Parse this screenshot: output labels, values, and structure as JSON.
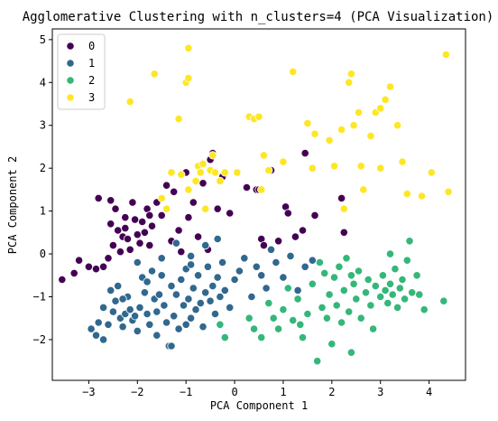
{
  "chart_data": {
    "type": "scatter",
    "title": "Agglomerative Clustering with n_clusters=4 (PCA Visualization)",
    "xlabel": "PCA Component 1",
    "ylabel": "PCA Component 2",
    "xlim": [
      -3.75,
      4.75
    ],
    "ylim": [
      -2.95,
      5.25
    ],
    "xticks": [
      -3,
      -2,
      -1,
      0,
      1,
      2,
      3,
      4
    ],
    "yticks": [
      -2,
      -1,
      0,
      1,
      2,
      3,
      4,
      5
    ],
    "grid": false,
    "legend_position": "top-left",
    "series": [
      {
        "name": "0",
        "color": "#440154",
        "points": [
          [
            -3.55,
            -0.6
          ],
          [
            -3.3,
            -0.45
          ],
          [
            -3.2,
            -0.15
          ],
          [
            -3.0,
            -0.3
          ],
          [
            -2.85,
            -0.35
          ],
          [
            -2.7,
            -0.3
          ],
          [
            -2.6,
            -0.1
          ],
          [
            -2.5,
            0.2
          ],
          [
            -2.55,
            0.7
          ],
          [
            -2.45,
            1.05
          ],
          [
            -2.4,
            0.55
          ],
          [
            -2.35,
            0.05
          ],
          [
            -2.3,
            0.4
          ],
          [
            -2.25,
            0.85
          ],
          [
            -2.2,
            0.35
          ],
          [
            -2.15,
            0.1
          ],
          [
            -2.1,
            1.2
          ],
          [
            -2.05,
            0.8
          ],
          [
            -2.0,
            0.45
          ],
          [
            -1.95,
            0.25
          ],
          [
            -1.9,
            0.75
          ],
          [
            -1.85,
            0.5
          ],
          [
            -1.8,
            1.05
          ],
          [
            -1.75,
            0.2
          ],
          [
            -1.7,
            0.65
          ],
          [
            -1.6,
            1.2
          ],
          [
            -1.5,
            0.9
          ],
          [
            -1.4,
            1.6
          ],
          [
            -1.3,
            0.3
          ],
          [
            -1.25,
            1.45
          ],
          [
            -1.15,
            0.55
          ],
          [
            -1.1,
            0.05
          ],
          [
            -1.0,
            1.9
          ],
          [
            -0.95,
            0.85
          ],
          [
            -0.85,
            1.2
          ],
          [
            -0.75,
            0.4
          ],
          [
            -0.65,
            1.65
          ],
          [
            -0.55,
            0.1
          ],
          [
            -0.5,
            2.2
          ],
          [
            -0.45,
            2.35
          ],
          [
            -0.35,
            1.05
          ],
          [
            -0.25,
            1.8
          ],
          [
            -0.1,
            0.95
          ],
          [
            0.25,
            1.55
          ],
          [
            0.45,
            1.5
          ],
          [
            0.5,
            1.5
          ],
          [
            0.55,
            0.35
          ],
          [
            0.6,
            0.2
          ],
          [
            0.75,
            1.95
          ],
          [
            0.9,
            0.3
          ],
          [
            1.05,
            1.1
          ],
          [
            1.1,
            0.95
          ],
          [
            1.25,
            0.4
          ],
          [
            1.4,
            0.55
          ],
          [
            1.45,
            2.35
          ],
          [
            1.65,
            0.9
          ],
          [
            2.2,
            1.3
          ],
          [
            2.25,
            0.5
          ],
          [
            -2.8,
            1.3
          ],
          [
            -2.55,
            1.25
          ],
          [
            -2.25,
            0.6
          ],
          [
            -1.75,
            0.9
          ]
        ]
      },
      {
        "name": "1",
        "color": "#31688e",
        "points": [
          [
            -2.95,
            -1.75
          ],
          [
            -2.85,
            -1.9
          ],
          [
            -2.8,
            -1.6
          ],
          [
            -2.7,
            -2.0
          ],
          [
            -2.6,
            -1.65
          ],
          [
            -2.55,
            -0.85
          ],
          [
            -2.5,
            -1.35
          ],
          [
            -2.45,
            -1.1
          ],
          [
            -2.4,
            -0.75
          ],
          [
            -2.35,
            -1.5
          ],
          [
            -2.3,
            -1.7
          ],
          [
            -2.25,
            -1.4
          ],
          [
            -2.2,
            -1.0
          ],
          [
            -2.15,
            -1.3
          ],
          [
            -2.1,
            -1.55
          ],
          [
            -2.05,
            -1.45
          ],
          [
            -2.0,
            -1.8
          ],
          [
            -1.95,
            -1.25
          ],
          [
            -1.9,
            -0.55
          ],
          [
            -1.85,
            -0.9
          ],
          [
            -1.8,
            -1.4
          ],
          [
            -1.75,
            -1.65
          ],
          [
            -1.7,
            -0.4
          ],
          [
            -1.65,
            -1.05
          ],
          [
            -1.6,
            -1.35
          ],
          [
            -1.55,
            -0.95
          ],
          [
            -1.5,
            -0.5
          ],
          [
            -1.45,
            -1.2
          ],
          [
            -1.4,
            -1.6
          ],
          [
            -1.35,
            -2.15
          ],
          [
            -1.3,
            -0.75
          ],
          [
            -1.25,
            -1.45
          ],
          [
            -1.2,
            -0.95
          ],
          [
            -1.15,
            -1.75
          ],
          [
            -1.1,
            -0.6
          ],
          [
            -1.05,
            -1.2
          ],
          [
            -1.0,
            -0.35
          ],
          [
            -0.95,
            -1.05
          ],
          [
            -0.9,
            -1.5
          ],
          [
            -0.85,
            -0.8
          ],
          [
            -0.8,
            -1.3
          ],
          [
            -0.75,
            -0.5
          ],
          [
            -0.7,
            -1.15
          ],
          [
            -0.65,
            -1.7
          ],
          [
            -0.6,
            -0.9
          ],
          [
            -0.55,
            -0.3
          ],
          [
            -0.5,
            -1.1
          ],
          [
            -0.45,
            -0.75
          ],
          [
            -0.4,
            -1.4
          ],
          [
            -0.35,
            -0.55
          ],
          [
            -0.3,
            -1.0
          ],
          [
            -0.25,
            -0.2
          ],
          [
            -0.2,
            -0.85
          ],
          [
            -0.1,
            -1.25
          ],
          [
            0.0,
            -0.6
          ],
          [
            0.1,
            -0.4
          ],
          [
            0.2,
            -0.1
          ],
          [
            0.35,
            -1.0
          ],
          [
            0.45,
            -0.3
          ],
          [
            0.55,
            -0.5
          ],
          [
            0.65,
            -0.8
          ],
          [
            0.75,
            0.1
          ],
          [
            0.85,
            -0.2
          ],
          [
            1.0,
            -0.55
          ],
          [
            1.15,
            -0.05
          ],
          [
            1.3,
            -0.85
          ],
          [
            1.45,
            -0.3
          ],
          [
            1.6,
            -0.15
          ],
          [
            -2.0,
            -0.2
          ],
          [
            -1.5,
            -0.1
          ],
          [
            -1.2,
            0.25
          ],
          [
            -0.9,
            -0.05
          ],
          [
            -0.6,
            0.2
          ],
          [
            -0.35,
            0.35
          ],
          [
            -2.7,
            -1.25
          ],
          [
            -1.3,
            -2.15
          ],
          [
            -1.8,
            -0.65
          ],
          [
            -0.9,
            -0.25
          ],
          [
            -1.6,
            -1.9
          ],
          [
            -2.3,
            -1.05
          ],
          [
            -1.0,
            -1.65
          ]
        ]
      },
      {
        "name": "2",
        "color": "#35b779",
        "points": [
          [
            -0.3,
            -1.65
          ],
          [
            -0.2,
            -1.95
          ],
          [
            0.3,
            -1.5
          ],
          [
            0.4,
            -1.75
          ],
          [
            0.55,
            -1.95
          ],
          [
            0.7,
            -1.15
          ],
          [
            0.8,
            -1.5
          ],
          [
            0.9,
            -1.75
          ],
          [
            1.0,
            -1.3
          ],
          [
            1.1,
            -0.8
          ],
          [
            1.2,
            -1.55
          ],
          [
            1.3,
            -1.05
          ],
          [
            1.4,
            -1.95
          ],
          [
            1.5,
            -1.4
          ],
          [
            1.6,
            -0.7
          ],
          [
            1.7,
            -2.5
          ],
          [
            1.75,
            -0.2
          ],
          [
            1.8,
            -1.25
          ],
          [
            1.85,
            -0.45
          ],
          [
            1.9,
            -1.5
          ],
          [
            1.95,
            -0.95
          ],
          [
            2.0,
            -2.1
          ],
          [
            2.05,
            -0.55
          ],
          [
            2.1,
            -1.2
          ],
          [
            2.15,
            -0.3
          ],
          [
            2.2,
            -1.6
          ],
          [
            2.25,
            -0.85
          ],
          [
            2.3,
            -0.1
          ],
          [
            2.35,
            -1.35
          ],
          [
            2.4,
            -2.3
          ],
          [
            2.45,
            -0.7
          ],
          [
            2.5,
            -1.05
          ],
          [
            2.55,
            -0.4
          ],
          [
            2.6,
            -1.5
          ],
          [
            2.7,
            -0.9
          ],
          [
            2.75,
            -0.6
          ],
          [
            2.8,
            -1.2
          ],
          [
            2.9,
            -0.75
          ],
          [
            3.0,
            -1.0
          ],
          [
            3.05,
            -0.5
          ],
          [
            3.1,
            -0.85
          ],
          [
            3.15,
            -1.15
          ],
          [
            3.2,
            -0.7
          ],
          [
            3.25,
            -0.95
          ],
          [
            3.3,
            -0.35
          ],
          [
            3.35,
            -1.25
          ],
          [
            3.4,
            -0.8
          ],
          [
            3.5,
            -1.05
          ],
          [
            3.55,
            -0.15
          ],
          [
            3.6,
            0.3
          ],
          [
            3.65,
            -0.9
          ],
          [
            3.75,
            -0.5
          ],
          [
            3.8,
            -0.95
          ],
          [
            3.9,
            -1.3
          ],
          [
            4.3,
            -1.1
          ],
          [
            3.2,
            0.0
          ],
          [
            2.85,
            -1.75
          ],
          [
            2.4,
            -0.5
          ],
          [
            1.35,
            -1.65
          ],
          [
            3.45,
            -0.6
          ]
        ]
      },
      {
        "name": "3",
        "color": "#fde725",
        "points": [
          [
            -2.15,
            3.55
          ],
          [
            -1.65,
            4.2
          ],
          [
            -1.15,
            3.15
          ],
          [
            -1.0,
            4.0
          ],
          [
            -0.95,
            4.1
          ],
          [
            -0.95,
            4.8
          ],
          [
            -1.5,
            1.3
          ],
          [
            -1.4,
            1.05
          ],
          [
            -1.3,
            1.9
          ],
          [
            -1.1,
            1.85
          ],
          [
            -0.95,
            1.5
          ],
          [
            -0.8,
            1.7
          ],
          [
            -0.75,
            2.05
          ],
          [
            -0.7,
            1.9
          ],
          [
            -0.65,
            2.1
          ],
          [
            -0.5,
            1.95
          ],
          [
            -0.4,
            1.9
          ],
          [
            -0.3,
            1.7
          ],
          [
            -0.2,
            1.9
          ],
          [
            -0.6,
            1.05
          ],
          [
            0.05,
            1.9
          ],
          [
            0.3,
            3.2
          ],
          [
            0.4,
            3.15
          ],
          [
            0.5,
            3.2
          ],
          [
            0.55,
            1.5
          ],
          [
            0.7,
            1.95
          ],
          [
            1.0,
            2.15
          ],
          [
            1.2,
            4.25
          ],
          [
            1.5,
            3.05
          ],
          [
            1.6,
            2.0
          ],
          [
            1.65,
            2.8
          ],
          [
            1.95,
            2.65
          ],
          [
            2.05,
            2.05
          ],
          [
            2.2,
            2.9
          ],
          [
            2.45,
            3.0
          ],
          [
            2.55,
            3.3
          ],
          [
            2.6,
            2.05
          ],
          [
            2.65,
            1.5
          ],
          [
            2.8,
            2.75
          ],
          [
            2.9,
            3.3
          ],
          [
            3.0,
            3.4
          ],
          [
            3.1,
            3.6
          ],
          [
            3.2,
            3.9
          ],
          [
            3.35,
            3.0
          ],
          [
            3.45,
            2.15
          ],
          [
            3.55,
            1.4
          ],
          [
            3.85,
            1.35
          ],
          [
            4.05,
            1.9
          ],
          [
            4.4,
            1.45
          ],
          [
            3.0,
            2.0
          ],
          [
            2.35,
            4.0
          ],
          [
            2.4,
            4.2
          ],
          [
            2.25,
            1.05
          ],
          [
            4.35,
            4.65
          ],
          [
            0.6,
            2.3
          ],
          [
            -0.45,
            2.3
          ]
        ]
      }
    ]
  }
}
